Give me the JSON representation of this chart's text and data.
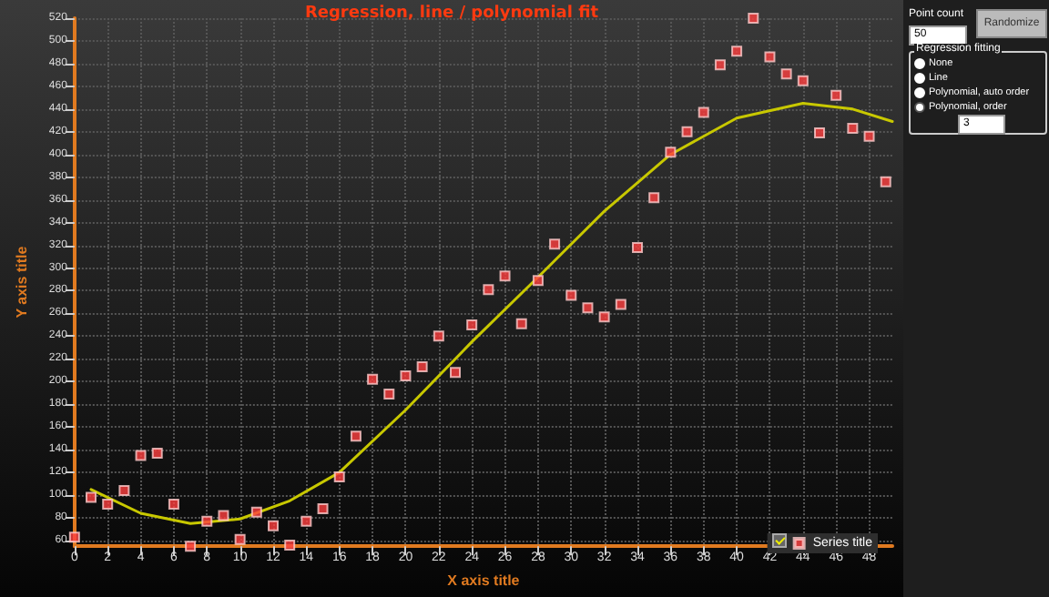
{
  "chart_data": {
    "type": "scatter",
    "title": "Regression, line / polynomial fit",
    "xlabel": "X axis title",
    "ylabel": "Y axis title",
    "xlim": [
      0,
      49.4
    ],
    "xticks": [
      0,
      2,
      4,
      6,
      8,
      10,
      12,
      14,
      16,
      18,
      20,
      22,
      24,
      26,
      28,
      30,
      32,
      34,
      36,
      38,
      40,
      42,
      44,
      46,
      48
    ],
    "ylim": [
      55,
      520
    ],
    "yticks": [
      60,
      80,
      100,
      120,
      140,
      160,
      180,
      200,
      220,
      240,
      260,
      280,
      300,
      320,
      340,
      360,
      380,
      400,
      420,
      440,
      460,
      480,
      500,
      520
    ],
    "grid": true,
    "legend": "bottom right",
    "marker": "square",
    "series": [
      {
        "name": "Series title",
        "color": "#ff4040",
        "x": [
          0,
          1,
          2,
          3,
          4,
          5,
          6,
          7,
          8,
          9,
          10,
          11,
          12,
          13,
          14,
          15,
          16,
          17,
          18,
          19,
          20,
          21,
          22,
          23,
          24,
          25,
          26,
          27,
          28,
          29,
          30,
          31,
          32,
          33,
          34,
          35,
          36,
          37,
          38,
          39,
          40,
          41,
          42,
          43,
          44,
          45,
          46,
          47,
          48,
          49
        ],
        "values": [
          63,
          98,
          92,
          104,
          135,
          137,
          92,
          55,
          77,
          82,
          61,
          85,
          73,
          56,
          77,
          88,
          116,
          152,
          202,
          189,
          205,
          213,
          240,
          208,
          250,
          281,
          293,
          251,
          289,
          321,
          276,
          265,
          257,
          268,
          318,
          362,
          402,
          420,
          437,
          479,
          491,
          520,
          486,
          471,
          465,
          419,
          452,
          423,
          416,
          376
        ]
      },
      {
        "type": "line",
        "color": "#c8c800",
        "marker": "none",
        "x": [
          1,
          4,
          7,
          10,
          13,
          16,
          20,
          24,
          28,
          32,
          36,
          40,
          44,
          47,
          49.4
        ],
        "values": [
          105,
          84,
          75,
          79,
          95,
          120,
          175,
          235,
          292,
          350,
          400,
          432,
          445,
          440,
          429
        ]
      }
    ],
    "annotations": [
      "Point count",
      "50",
      "Randomize",
      "Regression fitting",
      "None",
      "Line",
      "Polynomial, auto order",
      "Polynomial, order",
      "3"
    ]
  }
}
